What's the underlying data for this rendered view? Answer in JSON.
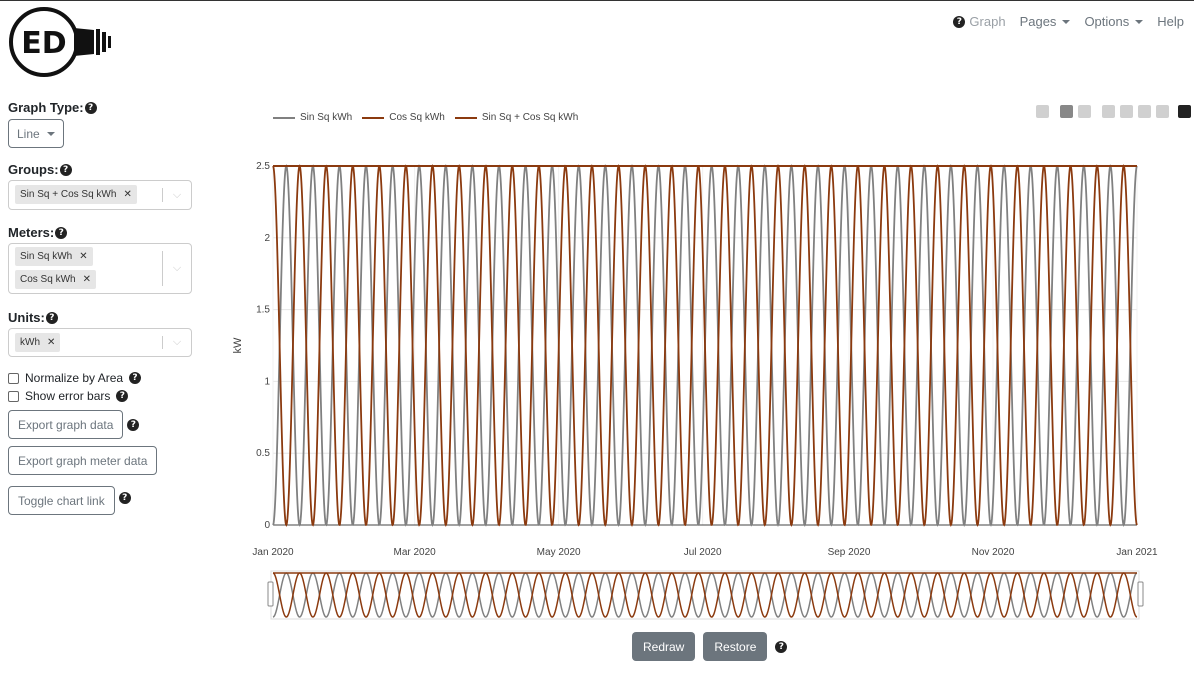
{
  "nav": {
    "graph": "Graph",
    "pages": "Pages",
    "options": "Options",
    "help": "Help"
  },
  "logo": {
    "text": "ED"
  },
  "sidebar": {
    "graph_type_label": "Graph Type:",
    "graph_type_value": "Line",
    "groups_label": "Groups:",
    "groups_selected": [
      "Sin Sq + Cos Sq kWh"
    ],
    "meters_label": "Meters:",
    "meters_selected": [
      "Sin Sq kWh",
      "Cos Sq kWh"
    ],
    "units_label": "Units:",
    "units_selected": [
      "kWh"
    ],
    "normalize_label": "Normalize by Area",
    "error_bars_label": "Show error bars",
    "export_graph_data": "Export graph data",
    "export_meter_data": "Export graph meter data",
    "toggle_chart_link": "Toggle chart link"
  },
  "chart_data": {
    "type": "line",
    "ylabel": "kW",
    "ylim": [
      0,
      2.5
    ],
    "y_ticks": [
      "0",
      "0.5",
      "1",
      "1.5",
      "2",
      "2.5"
    ],
    "x_ticks": [
      "Jan 2020",
      "Mar 2020",
      "May 2020",
      "Jul 2020",
      "Sep 2020",
      "Nov 2020",
      "Jan 2021"
    ],
    "x_range": [
      "2020-01-01",
      "2021-01-01"
    ],
    "cycles": 32.5,
    "series": [
      {
        "name": "Sin Sq kWh",
        "color": "#808080",
        "formula": "2.5*sin^2",
        "amplitude": 2.5
      },
      {
        "name": "Cos Sq kWh",
        "color": "#8b3a0f",
        "formula": "2.5*cos^2",
        "amplitude": 2.5
      },
      {
        "name": "Sin Sq + Cos Sq kWh",
        "color": "#8b3a0f",
        "formula": "constant",
        "value": 2.5
      }
    ],
    "grid": true,
    "legend": "top-left",
    "range_slider": true
  },
  "buttons": {
    "redraw": "Redraw",
    "restore": "Restore"
  }
}
